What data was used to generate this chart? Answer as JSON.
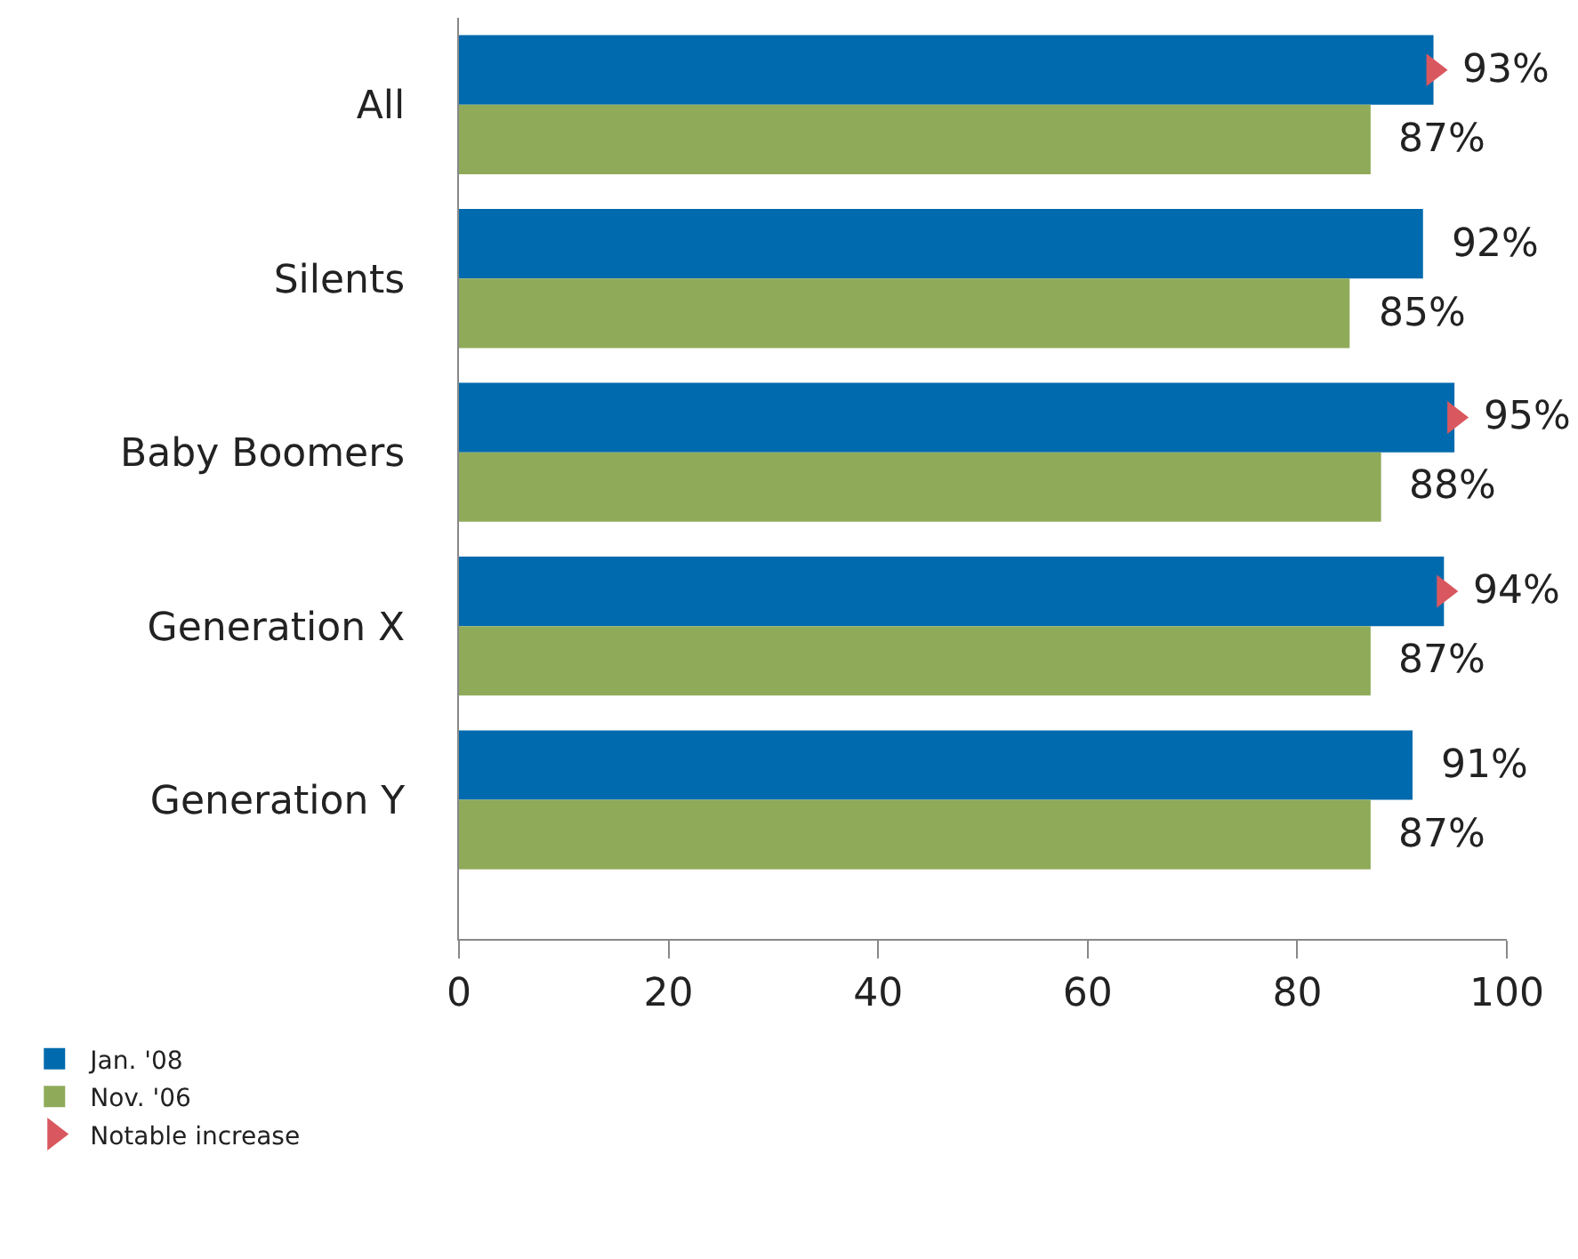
{
  "chart_data": {
    "type": "bar",
    "orientation": "horizontal",
    "categories": [
      "All",
      "Silents",
      "Baby Boomers",
      "Generation X",
      "Generation Y"
    ],
    "series": [
      {
        "name": "Jan. '08",
        "color": "#006aae",
        "values": [
          93,
          92,
          95,
          94,
          91
        ],
        "value_labels": [
          "93%",
          "92%",
          "95%",
          "94%",
          "91%"
        ]
      },
      {
        "name": "Nov. '06",
        "color": "#8fab5a",
        "values": [
          87,
          85,
          88,
          87,
          87
        ],
        "value_labels": [
          "87%",
          "85%",
          "88%",
          "87%",
          "87%"
        ]
      },
      {
        "name": "Notable increase",
        "type": "scatter",
        "marker": "triangle",
        "color": "#d9575e",
        "values": [
          93,
          null,
          95,
          94,
          null
        ]
      }
    ],
    "xlim": [
      0,
      100
    ],
    "xticks": [
      0,
      20,
      40,
      60,
      80,
      100
    ],
    "grid": false,
    "legend": "bottom left"
  }
}
